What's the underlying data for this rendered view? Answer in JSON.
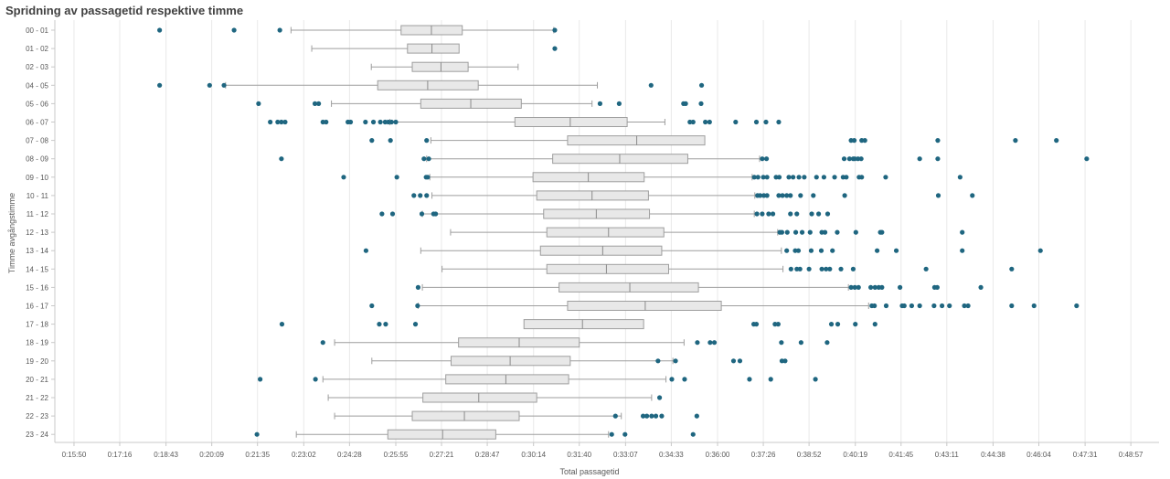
{
  "chart_data": {
    "type": "boxplot",
    "title": "Spridning av passagetid respektive timme",
    "xlabel": "Total passagetid",
    "ylabel": "Timme avgångstimme",
    "x_tick_labels": [
      "0:15:50",
      "0:17:16",
      "0:18:43",
      "0:20:09",
      "0:21:35",
      "0:23:02",
      "0:24:28",
      "0:25:55",
      "0:27:21",
      "0:28:47",
      "0:30:14",
      "0:31:40",
      "0:33:07",
      "0:34:33",
      "0:36:00",
      "0:37:26",
      "0:38:52",
      "0:40:19",
      "0:41:45",
      "0:43:11",
      "0:44:38",
      "0:46:04",
      "0:47:31",
      "0:48:57"
    ],
    "x_tick_seconds": [
      950,
      1036,
      1123,
      1209,
      1295,
      1382,
      1468,
      1555,
      1641,
      1727,
      1814,
      1900,
      1987,
      2073,
      2160,
      2246,
      2332,
      2419,
      2505,
      2591,
      2678,
      2764,
      2851,
      2937
    ],
    "xlim_seconds": [
      914,
      2990
    ],
    "grid": true,
    "colors": {
      "box_fill": "#e8e8e8",
      "box_stroke": "#9e9e9e",
      "median": "#8a8a8a",
      "whisker": "#9e9e9e",
      "outlier": "#1f6680",
      "grid": "#e9e9e9",
      "axis": "#c8c8c8"
    },
    "categories": [
      "00 - 01",
      "01 - 02",
      "02 - 03",
      "04 - 05",
      "05 - 06",
      "06 - 07",
      "07 - 08",
      "08 - 09",
      "09 - 10",
      "10 - 11",
      "11 - 12",
      "12 - 13",
      "13 - 14",
      "14 - 15",
      "15 - 16",
      "16 - 17",
      "17 - 18",
      "18 - 19",
      "19 - 20",
      "20 - 21",
      "21 - 22",
      "22 - 23",
      "23 - 24"
    ],
    "series": [
      {
        "whisker_low": 1358,
        "q1": 1565,
        "median": 1622,
        "q3": 1680,
        "whisker_high": 1852,
        "outliers": [
          1111,
          1251,
          1337,
          1854
        ]
      },
      {
        "whisker_low": 1397,
        "q1": 1577,
        "median": 1623,
        "q3": 1674,
        "whisker_high": null,
        "outliers": [
          1854
        ]
      },
      {
        "whisker_low": 1509,
        "q1": 1586,
        "median": 1640,
        "q3": 1691,
        "whisker_high": 1785,
        "outliers": []
      },
      {
        "whisker_low": 1235,
        "q1": 1521,
        "median": 1615,
        "q3": 1710,
        "whisker_high": 1934,
        "outliers": [
          1111,
          1232,
          1205,
          2035,
          2130
        ]
      },
      {
        "whisker_low": 1434,
        "q1": 1602,
        "median": 1696,
        "q3": 1791,
        "whisker_high": 1924,
        "outliers": [
          1297,
          1403,
          1410,
          1939,
          1975,
          2096,
          2100,
          2129
        ]
      },
      {
        "whisker_low": 1544,
        "q1": 1779,
        "median": 1883,
        "q3": 1990,
        "whisker_high": 2061,
        "outliers": [
          1319,
          1333,
          1340,
          1347,
          1418,
          1424,
          1465,
          1470,
          1498,
          1513,
          1526,
          1535,
          1541,
          1547,
          1555,
          2108,
          2114,
          2137,
          2145,
          2194,
          2233,
          2251,
          2275
        ]
      },
      {
        "whisker_low": 1621,
        "q1": 1878,
        "median": 2008,
        "q3": 2136,
        "whisker_high": null,
        "outliers": [
          1510,
          1545,
          1613,
          2411,
          2417,
          2431,
          2437,
          2574,
          2720,
          2797
        ]
      },
      {
        "whisker_low": 1613,
        "q1": 1850,
        "median": 1976,
        "q3": 2104,
        "whisker_high": 2239,
        "outliers": [
          1340,
          1608,
          1617,
          2244,
          2252,
          2398,
          2408,
          2415,
          2418,
          2424,
          2430,
          2540,
          2574,
          2854
        ]
      },
      {
        "whisker_low": 1619,
        "q1": 1813,
        "median": 1917,
        "q3": 2022,
        "whisker_high": 2225,
        "outliers": [
          1457,
          1557,
          1612,
          1615,
          2229,
          2236,
          2246,
          2253,
          2270,
          2276,
          2294,
          2302,
          2313,
          2323,
          2346,
          2360,
          2380,
          2396,
          2402,
          2426,
          2431,
          2476,
          2616
        ]
      },
      {
        "whisker_low": 1623,
        "q1": 1820,
        "median": 1924,
        "q3": 2030,
        "whisker_high": 2230,
        "outliers": [
          1589,
          1601,
          1613,
          2235,
          2240,
          2247,
          2253,
          2275,
          2282,
          2290,
          2297,
          2316,
          2340,
          2399,
          2575,
          2639
        ]
      },
      {
        "whisker_low": 1605,
        "q1": 1833,
        "median": 1932,
        "q3": 2032,
        "whisker_high": 2229,
        "outliers": [
          1529,
          1549,
          1604,
          1626,
          1630,
          2234,
          2244,
          2256,
          2264,
          2297,
          2309,
          2337,
          2350,
          2367
        ]
      },
      {
        "whisker_low": 1658,
        "q1": 1839,
        "median": 1955,
        "q3": 2059,
        "whisker_high": 2273,
        "outliers": [
          2277,
          2281,
          2291,
          2307,
          2319,
          2334,
          2356,
          2362,
          2385,
          2420,
          2466,
          2469,
          2620
        ]
      },
      {
        "whisker_low": 1602,
        "q1": 1827,
        "median": 1944,
        "q3": 2055,
        "whisker_high": 2280,
        "outliers": [
          1499,
          2290,
          2306,
          2312,
          2336,
          2355,
          2376,
          2460,
          2496,
          2620,
          2767
        ]
      },
      {
        "whisker_low": 1642,
        "q1": 1839,
        "median": 1951,
        "q3": 2068,
        "whisker_high": 2283,
        "outliers": [
          2298,
          2309,
          2315,
          2332,
          2356,
          2364,
          2371,
          2392,
          2415,
          2552,
          2713
        ]
      },
      {
        "whisker_low": 1605,
        "q1": 1862,
        "median": 1995,
        "q3": 2124,
        "whisker_high": 2406,
        "outliers": [
          1597,
          2411,
          2418,
          2425,
          2448,
          2456,
          2463,
          2469,
          2503,
          2568,
          2573,
          2655
        ]
      },
      {
        "whisker_low": 1597,
        "q1": 1878,
        "median": 2024,
        "q3": 2167,
        "whisker_high": 2444,
        "outliers": [
          1510,
          1596,
          2450,
          2455,
          2477,
          2507,
          2511,
          2525,
          2540,
          2567,
          2582,
          2596,
          2624,
          2631,
          2713,
          2755,
          2835
        ]
      },
      {
        "whisker_low": null,
        "q1": 1796,
        "median": 1906,
        "q3": 2021,
        "whisker_high": null,
        "outliers": [
          1341,
          1524,
          1536,
          1592,
          2228,
          2233,
          2268,
          2274,
          2374,
          2386,
          2419,
          2456
        ]
      },
      {
        "whisker_low": 1440,
        "q1": 1673,
        "median": 1787,
        "q3": 1900,
        "whisker_high": 2097,
        "outliers": [
          1418,
          2122,
          2146,
          2154,
          2280,
          2317,
          2366
        ]
      },
      {
        "whisker_low": 1510,
        "q1": 1659,
        "median": 1770,
        "q3": 1883,
        "whisker_high": 2076,
        "outliers": [
          2048,
          2081,
          2190,
          2202,
          2281,
          2287
        ]
      },
      {
        "whisker_low": 1418,
        "q1": 1649,
        "median": 1762,
        "q3": 1880,
        "whisker_high": 2063,
        "outliers": [
          1300,
          1404,
          2074,
          2098,
          2220,
          2260,
          2344
        ]
      },
      {
        "whisker_low": 1428,
        "q1": 1606,
        "median": 1711,
        "q3": 1820,
        "whisker_high": 2036,
        "outliers": [
          2051
        ]
      },
      {
        "whisker_low": 1440,
        "q1": 1586,
        "median": 1684,
        "q3": 1787,
        "whisker_high": 1979,
        "outliers": [
          1968,
          2020,
          2027,
          2036,
          2044,
          2055,
          2121
        ]
      },
      {
        "whisker_low": 1368,
        "q1": 1540,
        "median": 1643,
        "q3": 1743,
        "whisker_high": 1955,
        "outliers": [
          1294,
          1961,
          1986,
          2114
        ]
      }
    ]
  }
}
